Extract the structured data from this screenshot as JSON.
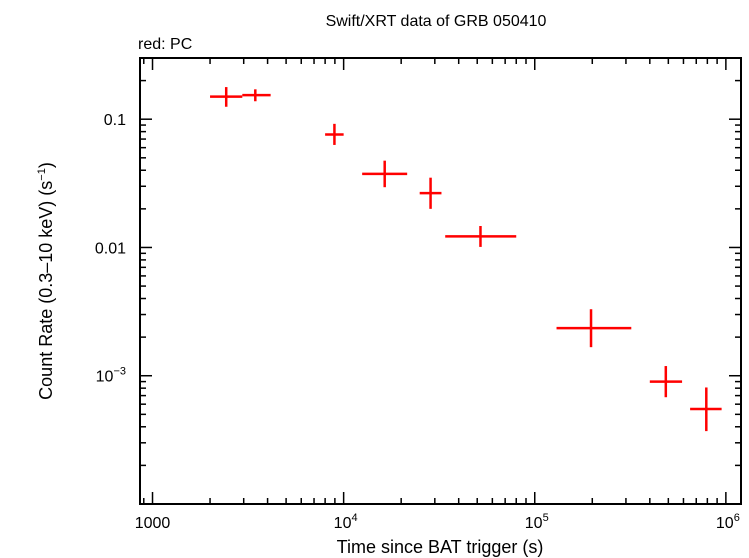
{
  "chart_data": {
    "type": "scatter",
    "title": "Swift/XRT data of GRB 050410",
    "subtitle": "red: PC",
    "xlabel": "Time since BAT trigger (s)",
    "ylabel": "Count Rate (0.3–10 keV) (s",
    "ylabel_sup": "−1",
    "ylabel_tail": ")",
    "x_scale": "log",
    "y_scale": "log",
    "xlim": [
      860,
      1200000
    ],
    "ylim": [
      0.0001,
      0.3
    ],
    "grid": false,
    "series_color": "#ff0000",
    "x_ticks": [
      {
        "value": 1000,
        "base": "1000",
        "sup": ""
      },
      {
        "value": 10000,
        "base": "10",
        "sup": "4"
      },
      {
        "value": 100000,
        "base": "10",
        "sup": "5"
      },
      {
        "value": 1000000,
        "base": "10",
        "sup": "6"
      }
    ],
    "y_ticks": [
      {
        "value": 0.1,
        "base": "0.1",
        "sup": ""
      },
      {
        "value": 0.01,
        "base": "0.01",
        "sup": ""
      },
      {
        "value": 0.001,
        "base": "10",
        "sup": "−3"
      }
    ],
    "points": [
      {
        "x": 2430,
        "x_lo": 2000,
        "x_hi": 2950,
        "y": 0.15,
        "y_lo": 0.125,
        "y_hi": 0.178
      },
      {
        "x": 3450,
        "x_lo": 2950,
        "x_hi": 4150,
        "y": 0.154,
        "y_lo": 0.138,
        "y_hi": 0.171
      },
      {
        "x": 8950,
        "x_lo": 8000,
        "x_hi": 10000,
        "y": 0.076,
        "y_lo": 0.063,
        "y_hi": 0.092
      },
      {
        "x": 16400,
        "x_lo": 12500,
        "x_hi": 21500,
        "y": 0.0375,
        "y_lo": 0.0295,
        "y_hi": 0.0475
      },
      {
        "x": 28500,
        "x_lo": 25000,
        "x_hi": 32500,
        "y": 0.0265,
        "y_lo": 0.02,
        "y_hi": 0.035
      },
      {
        "x": 52000,
        "x_lo": 34000,
        "x_hi": 80000,
        "y": 0.0122,
        "y_lo": 0.0101,
        "y_hi": 0.0147
      },
      {
        "x": 197000,
        "x_lo": 130000,
        "x_hi": 320000,
        "y": 0.00235,
        "y_lo": 0.00167,
        "y_hi": 0.0033
      },
      {
        "x": 485000,
        "x_lo": 400000,
        "x_hi": 590000,
        "y": 0.0009,
        "y_lo": 0.00068,
        "y_hi": 0.00119
      },
      {
        "x": 790000,
        "x_lo": 650000,
        "x_hi": 950000,
        "y": 0.00055,
        "y_lo": 0.00037,
        "y_hi": 0.00081
      }
    ]
  }
}
